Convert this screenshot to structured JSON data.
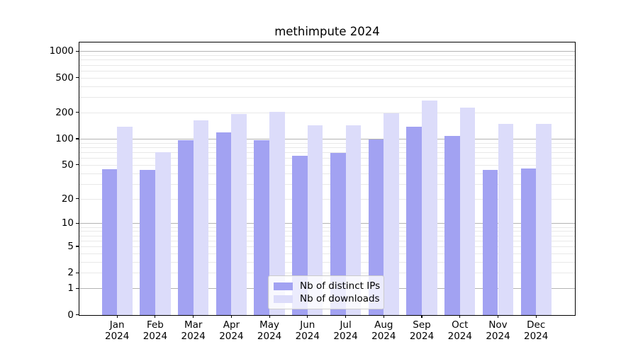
{
  "figure": {
    "title": "methimpute 2024"
  },
  "legend": {
    "items": [
      {
        "label": "Nb of distinct IPs",
        "series": "ips"
      },
      {
        "label": "Nb of downloads",
        "series": "downloads"
      }
    ]
  },
  "colors": {
    "ips": "#a2a2f2",
    "downloads": "#dcdcfa",
    "grid_major": "#b3b3b3",
    "grid_minor": "#e8e8e8",
    "axis": "#000000"
  },
  "chart_data": {
    "type": "bar",
    "title": "methimpute 2024",
    "y_scale": "log10(1+y)",
    "ylim": [
      0,
      1300
    ],
    "grid": "on",
    "legend_position": "lower center",
    "yticks": [
      0,
      1,
      2,
      5,
      10,
      20,
      50,
      100,
      200,
      500,
      1000
    ],
    "categories": [
      {
        "month": "Jan",
        "year": "2024"
      },
      {
        "month": "Feb",
        "year": "2024"
      },
      {
        "month": "Mar",
        "year": "2024"
      },
      {
        "month": "Apr",
        "year": "2024"
      },
      {
        "month": "May",
        "year": "2024"
      },
      {
        "month": "Jun",
        "year": "2024"
      },
      {
        "month": "Jul",
        "year": "2024"
      },
      {
        "month": "Aug",
        "year": "2024"
      },
      {
        "month": "Sep",
        "year": "2024"
      },
      {
        "month": "Oct",
        "year": "2024"
      },
      {
        "month": "Nov",
        "year": "2024"
      },
      {
        "month": "Dec",
        "year": "2024"
      }
    ],
    "series": [
      {
        "name": "Nb of distinct IPs",
        "color_key": "ips",
        "values": [
          45,
          44,
          97,
          119,
          98,
          64,
          69,
          99,
          139,
          108,
          44,
          46
        ]
      },
      {
        "name": "Nb of downloads",
        "color_key": "downloads",
        "values": [
          140,
          70,
          165,
          193,
          207,
          145,
          144,
          198,
          277,
          230,
          149,
          149
        ]
      }
    ]
  }
}
